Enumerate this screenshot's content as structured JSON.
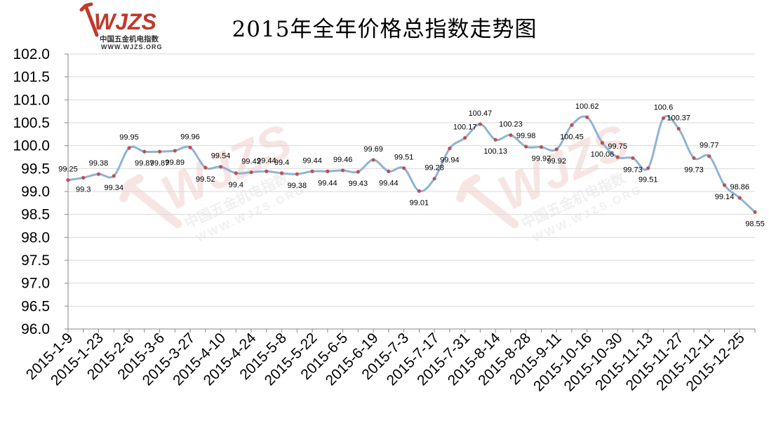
{
  "brand": {
    "logo_text": "WJZS",
    "logo_subtitle": "中国五金机电指数",
    "logo_url": "WWW.WJZS.ORG",
    "watermark_subtitle": "中国五金机电指数",
    "watermark_url": "WWW.WJZS.ORG"
  },
  "colors": {
    "line": "#8fb3d6",
    "marker": "#c0504d",
    "grid": "#d9d9d9",
    "brand_red": "#c0392b"
  },
  "chart_data": {
    "type": "line",
    "title": "2015年全年价格总指数走势图",
    "xlabel": "",
    "ylabel": "",
    "ylim": [
      96.0,
      102.0
    ],
    "y_ticks": [
      "96.0",
      "96.5",
      "97.0",
      "97.5",
      "98.0",
      "98.5",
      "99.0",
      "99.5",
      "100.0",
      "100.5",
      "101.0",
      "101.5",
      "102.0"
    ],
    "grid": true,
    "legend": "none",
    "x_tick_labels": [
      "2015-1-9",
      "2015-1-23",
      "2015-2-6",
      "2015-3-6",
      "2015-3-27",
      "2015-4-10",
      "2015-4-24",
      "2015-5-8",
      "2015-5-22",
      "2015-6-5",
      "2015-6-19",
      "2015-7-3",
      "2015-7-17",
      "2015-7-31",
      "2015-8-14",
      "2015-8-28",
      "2015-9-11",
      "2015-10-16",
      "2015-10-30",
      "2015-11-13",
      "2015-11-27",
      "2015-12-11",
      "2015-12-25"
    ],
    "series": [
      {
        "values": [
          99.25,
          99.3,
          99.38,
          99.34,
          99.95,
          99.87,
          99.87,
          99.89,
          99.96,
          99.52,
          99.54,
          99.4,
          99.42,
          99.44,
          99.4,
          99.38,
          99.44,
          99.44,
          99.46,
          99.43,
          99.69,
          99.44,
          99.51,
          99.01,
          99.28,
          99.94,
          100.17,
          100.47,
          100.13,
          100.23,
          99.98,
          99.97,
          99.92,
          100.45,
          100.62,
          100.06,
          99.75,
          99.73,
          99.51,
          100.6,
          100.37,
          99.73,
          99.77,
          99.14,
          98.86,
          98.55
        ],
        "labels": [
          "99.25",
          "99.3",
          "99.38",
          "99.34",
          "99.95",
          "99.87",
          "99.87",
          "99.89",
          "99.96",
          "99.52",
          "99.54",
          "99.4",
          "99.42",
          "99.44",
          "99.4",
          "99.38",
          "99.44",
          "99.44",
          "99.46",
          "99.43",
          "99.69",
          "99.44",
          "99.51",
          "99.01",
          "99.28",
          "99.94",
          "100.17",
          "100.47",
          "100.13",
          "100.23",
          "99.98",
          "99.97",
          "99.92",
          "100.45",
          "100.62",
          "100.06",
          "99.75",
          "99.73",
          "99.51",
          "100.6",
          "100.37",
          "99.73",
          "99.77",
          "99.14",
          "98.86",
          "98.55"
        ]
      }
    ]
  }
}
